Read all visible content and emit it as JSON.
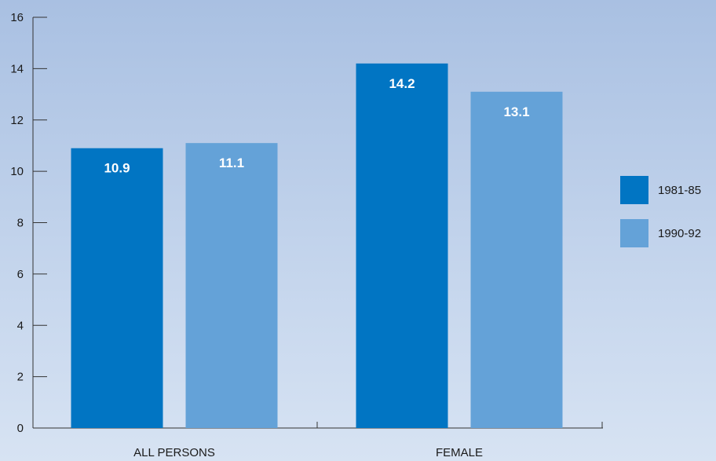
{
  "chart_data": {
    "type": "bar",
    "categories": [
      "ALL PERSONS",
      "FEMALE"
    ],
    "series": [
      {
        "name": "1981-85",
        "values": [
          10.9,
          14.2
        ],
        "color": "#0175c3"
      },
      {
        "name": "1990-92",
        "values": [
          11.1,
          13.1
        ],
        "color": "#64a2d8"
      }
    ],
    "data_labels": [
      [
        "10.9",
        "14.2"
      ],
      [
        "11.1",
        "13.1"
      ]
    ],
    "yticks": [
      0,
      2,
      4,
      6,
      8,
      10,
      12,
      14,
      16
    ],
    "ylim": [
      0,
      16
    ],
    "title": "",
    "xlabel": "",
    "ylabel": "",
    "grid": false,
    "legend_position": "right"
  }
}
